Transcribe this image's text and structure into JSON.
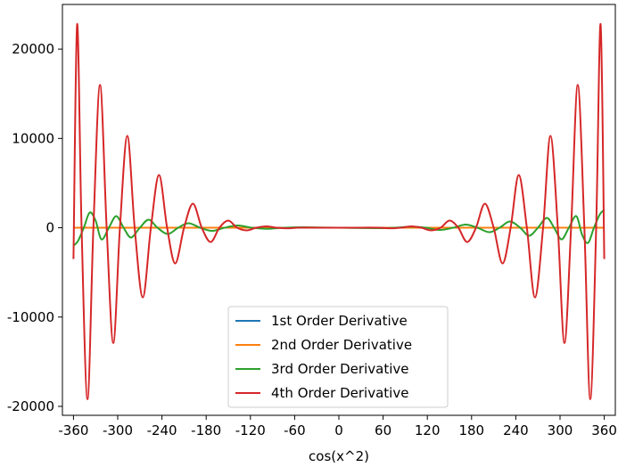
{
  "chart_data": {
    "type": "line",
    "title": "",
    "xlabel": "cos(x^2)",
    "ylabel": "",
    "xlim": [
      -375,
      375
    ],
    "ylim": [
      -21000,
      25000
    ],
    "x_ticks": [
      -360,
      -300,
      -240,
      -180,
      -120,
      -60,
      0,
      60,
      120,
      180,
      240,
      300,
      360
    ],
    "x_tick_labels": [
      "-360",
      "-300",
      "-240",
      "-180",
      "-120",
      "-60",
      "0",
      "60",
      "120",
      "180",
      "240",
      "300",
      "360"
    ],
    "y_ticks": [
      -20000,
      -10000,
      0,
      10000,
      20000
    ],
    "y_tick_labels": [
      "-20000",
      "-10000",
      "0",
      "10000",
      "20000"
    ],
    "grid": false,
    "legend_position": "lower-center",
    "series": [
      {
        "name": "1st Order Derivative",
        "color": "#1f77b4",
        "x": [
          -360,
          -300,
          -240,
          -180,
          -120,
          -60,
          0,
          60,
          120,
          180,
          240,
          300,
          360
        ],
        "y": [
          0,
          0,
          0,
          0,
          0,
          0,
          0,
          0,
          0,
          0,
          0,
          0,
          0
        ]
      },
      {
        "name": "2nd Order Derivative",
        "color": "#ff7f0e",
        "x": [
          -360,
          -300,
          -240,
          -180,
          -120,
          -60,
          0,
          60,
          120,
          180,
          240,
          300,
          360
        ],
        "y": [
          0,
          0,
          0,
          0,
          0,
          0,
          0,
          0,
          0,
          0,
          0,
          0,
          0
        ]
      },
      {
        "name": "3rd Order Derivative",
        "color": "#2ca02c",
        "x": [
          -360,
          -354,
          -346,
          -338,
          -330,
          -322,
          -312,
          -302,
          -292,
          -282,
          -270,
          -258,
          -246,
          -232,
          -218,
          -204,
          -188,
          -172,
          -155,
          -137,
          -118,
          -98,
          -75,
          -50,
          0,
          50,
          75,
          98,
          118,
          137,
          155,
          172,
          188,
          204,
          218,
          232,
          246,
          258,
          270,
          282,
          292,
          302,
          312,
          322,
          330,
          338,
          346,
          354,
          360
        ],
        "y": [
          -2000,
          -1500,
          0,
          1700,
          800,
          -1300,
          0,
          1300,
          0,
          -1100,
          0,
          900,
          0,
          -700,
          0,
          500,
          0,
          -350,
          0,
          250,
          0,
          -120,
          0,
          50,
          0,
          -50,
          0,
          120,
          0,
          -250,
          0,
          350,
          0,
          -500,
          0,
          700,
          0,
          -900,
          0,
          1100,
          0,
          -1300,
          0,
          1300,
          -800,
          -1700,
          0,
          1500,
          2000
        ]
      },
      {
        "name": "4th Order Derivative",
        "color": "#d62728",
        "x": [
          -360,
          -355,
          -349,
          -341,
          -333,
          -324,
          -315,
          -306,
          -297,
          -287,
          -277,
          -266,
          -255,
          -244,
          -233,
          -222,
          -210,
          -198,
          -186,
          -174,
          -162,
          -150,
          -138,
          -125,
          -112,
          -98,
          -84,
          -70,
          -56,
          -40,
          -20,
          0,
          20,
          40,
          56,
          70,
          84,
          98,
          112,
          125,
          138,
          150,
          162,
          174,
          186,
          198,
          210,
          222,
          233,
          244,
          255,
          266,
          277,
          287,
          297,
          306,
          315,
          324,
          333,
          341,
          349,
          355,
          360
        ],
        "y": [
          -3500,
          22800,
          0,
          -19200,
          0,
          16000,
          0,
          -12900,
          0,
          10300,
          0,
          -7800,
          0,
          5900,
          0,
          -4000,
          0,
          2700,
          0,
          -1600,
          0,
          800,
          0,
          -300,
          0,
          150,
          0,
          -60,
          0,
          20,
          0,
          0,
          0,
          20,
          0,
          -60,
          0,
          150,
          0,
          -300,
          0,
          800,
          0,
          -1600,
          0,
          2700,
          0,
          -4000,
          0,
          5900,
          0,
          -7800,
          0,
          10300,
          0,
          -12900,
          0,
          16000,
          0,
          -19200,
          0,
          22800,
          -3500
        ]
      }
    ]
  }
}
